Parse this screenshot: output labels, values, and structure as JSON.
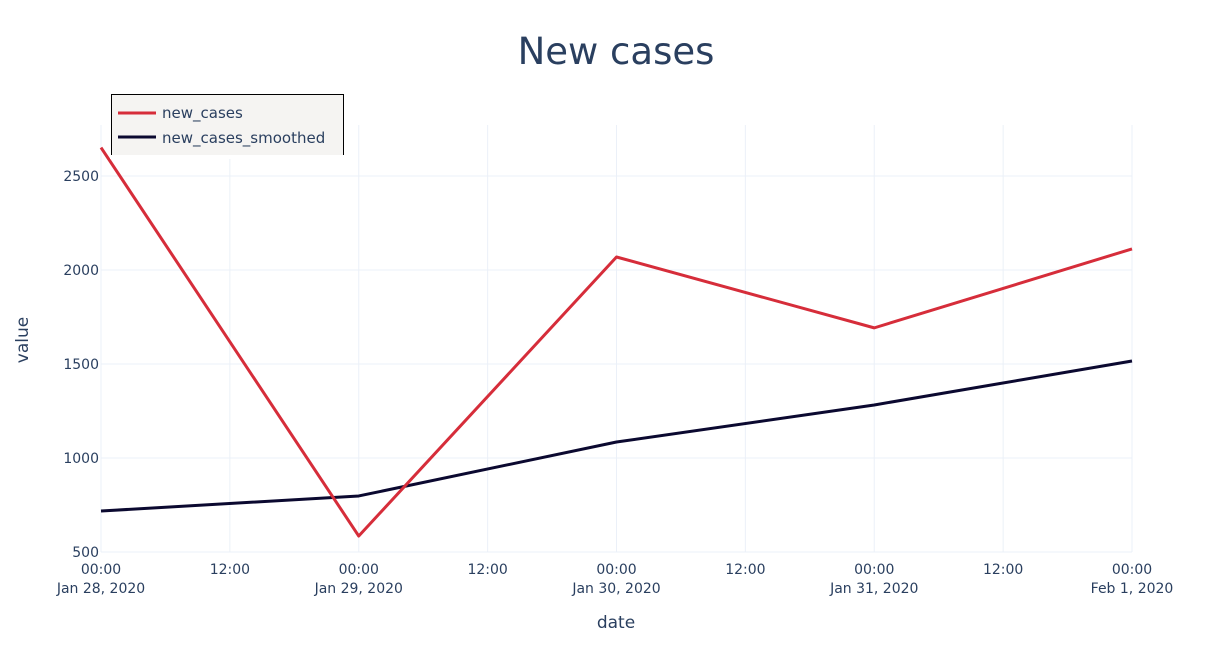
{
  "chart_data": {
    "type": "line",
    "title": "New cases",
    "xlabel": "date",
    "ylabel": "value",
    "x": [
      "2020-01-28",
      "2020-01-29",
      "2020-01-30",
      "2020-01-31",
      "2020-02-01"
    ],
    "series": [
      {
        "name": "new_cases",
        "color": "#d62d3a",
        "values": [
          2651,
          585,
          2069,
          1692,
          2112
        ]
      },
      {
        "name": "new_cases_smoothed",
        "color": "#0b0930",
        "values": [
          718,
          798,
          1085,
          1282,
          1516
        ]
      }
    ],
    "ylim": [
      500,
      2771
    ],
    "yticks": [
      500,
      1000,
      1500,
      2000,
      2500
    ],
    "xticks": [
      {
        "t": 0,
        "l1": "00:00",
        "l2": "Jan 28, 2020"
      },
      {
        "t": 0.5,
        "l1": "12:00",
        "l2": ""
      },
      {
        "t": 1,
        "l1": "00:00",
        "l2": "Jan 29, 2020"
      },
      {
        "t": 1.5,
        "l1": "12:00",
        "l2": ""
      },
      {
        "t": 2,
        "l1": "00:00",
        "l2": "Jan 30, 2020"
      },
      {
        "t": 2.5,
        "l1": "12:00",
        "l2": ""
      },
      {
        "t": 3,
        "l1": "00:00",
        "l2": "Jan 31, 2020"
      },
      {
        "t": 3.5,
        "l1": "12:00",
        "l2": ""
      },
      {
        "t": 4,
        "l1": "00:00",
        "l2": "Feb 1, 2020"
      }
    ],
    "grid": true,
    "legend": "top-left"
  }
}
